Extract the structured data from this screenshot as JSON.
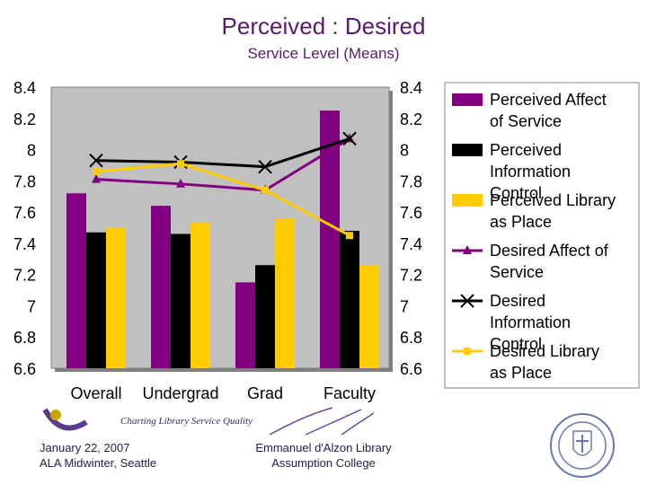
{
  "title": "Perceived : Desired",
  "subtitle": "Service Level (Means)",
  "chart_data": {
    "type": "bar",
    "categories": [
      "Overall",
      "Undergrad",
      "Grad",
      "Faculty"
    ],
    "ylim": [
      6.6,
      8.4
    ],
    "yticks": [
      "8.4",
      "8.2",
      "8",
      "7.8",
      "7.6",
      "7.4",
      "7.2",
      "7",
      "6.8",
      "6.6"
    ],
    "plot_background": "#c0c0c0",
    "grid": false,
    "legend_position": "right",
    "bar_series": [
      {
        "name": "Perceived Affect of Service",
        "color": "#800080",
        "values": [
          7.72,
          7.64,
          7.15,
          8.25
        ]
      },
      {
        "name": "Perceived Information Control",
        "color": "#000000",
        "values": [
          7.47,
          7.46,
          7.26,
          7.48
        ]
      },
      {
        "name": "Perceived Library as Place",
        "color": "#ffcc00",
        "values": [
          7.5,
          7.53,
          7.56,
          7.26
        ]
      }
    ],
    "line_series": [
      {
        "name": "Desired Affect of Service",
        "color": "#800080",
        "marker": "triangle",
        "values": [
          7.81,
          7.78,
          7.74,
          8.07
        ]
      },
      {
        "name": "Desired Information Control",
        "color": "#000000",
        "marker": "x",
        "values": [
          7.93,
          7.92,
          7.89,
          8.07
        ]
      },
      {
        "name": "Desired Library as Place",
        "color": "#ffcc00",
        "marker": "square",
        "values": [
          7.86,
          7.91,
          7.74,
          7.45
        ]
      }
    ]
  },
  "banner_text": "Charting Library Service Quality",
  "footer_left": {
    "line1": "January 22, 2007",
    "line2": "ALA Midwinter, Seattle"
  },
  "footer_mid": {
    "line1": "Emmanuel d'Alzon Library",
    "line2": "Assumption College"
  }
}
